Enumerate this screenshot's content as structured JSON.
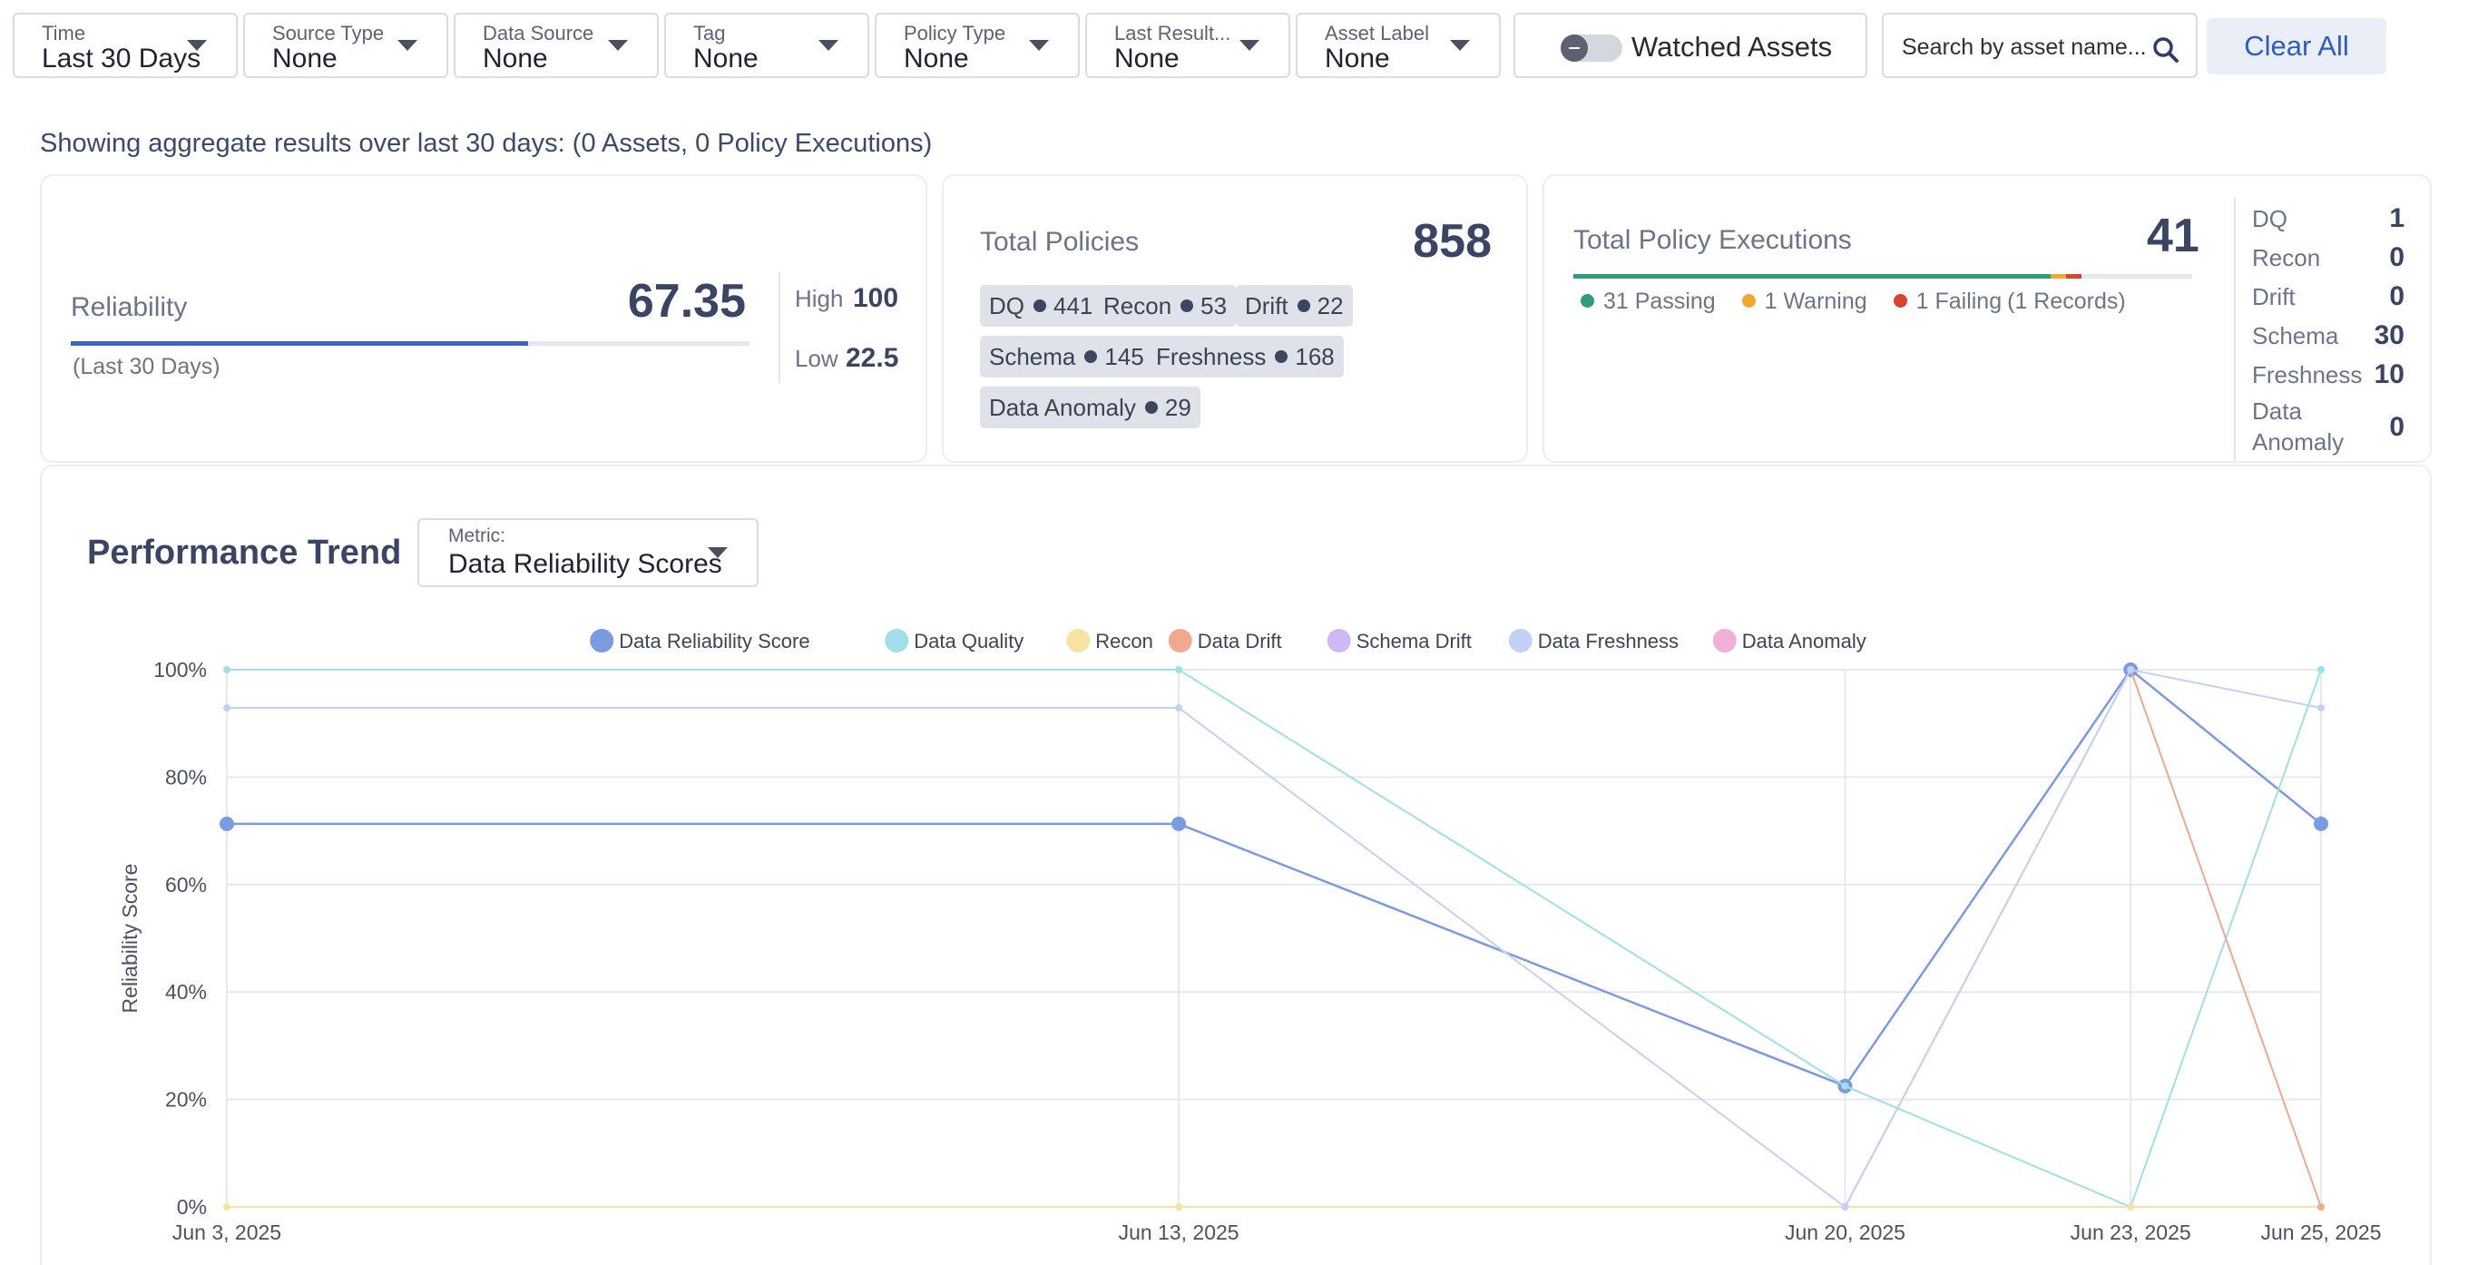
{
  "filters": [
    {
      "label": "Time",
      "value": "Last 30 Days"
    },
    {
      "label": "Source Type",
      "value": "None"
    },
    {
      "label": "Data Source",
      "value": "None"
    },
    {
      "label": "Tag",
      "value": "None"
    },
    {
      "label": "Policy Type",
      "value": "None"
    },
    {
      "label": "Last Result...",
      "value": "None"
    },
    {
      "label": "Asset Label",
      "value": "None"
    }
  ],
  "watched": {
    "label": "Watched Assets",
    "enabled": false
  },
  "search": {
    "placeholder": "Search by asset name..."
  },
  "clear_all": "Clear All",
  "summary": "Showing aggregate results over last 30 days: (0 Assets, 0 Policy Executions)",
  "reliability": {
    "title": "Reliability",
    "score": "67.35",
    "score_value": 67.35,
    "subtitle": "(Last 30 Days)",
    "high_label": "High",
    "high": "100",
    "low_label": "Low",
    "low": "22.5"
  },
  "policies": {
    "title": "Total Policies",
    "total": "858",
    "chips": [
      {
        "name": "DQ",
        "count": "441"
      },
      {
        "name": "Recon",
        "count": "53"
      },
      {
        "name": "Drift",
        "count": "22"
      },
      {
        "name": "Schema",
        "count": "145"
      },
      {
        "name": "Freshness",
        "count": "168"
      },
      {
        "name": "Data Anomaly",
        "count": "29"
      }
    ]
  },
  "executions": {
    "title": "Total Policy Executions",
    "total": "41",
    "passing": "31 Passing",
    "warning": "1 Warning",
    "failing": "1 Failing",
    "failing_records": "(1 Records)",
    "passing_count": 31,
    "warning_count": 1,
    "failing_count": 1,
    "colors": {
      "passing": "#2e9e7a",
      "warning": "#f0a830",
      "failing": "#d9432f"
    },
    "breakdown": [
      {
        "label": "DQ",
        "value": "1"
      },
      {
        "label": "Recon",
        "value": "0"
      },
      {
        "label": "Drift",
        "value": "0"
      },
      {
        "label": "Schema",
        "value": "30"
      },
      {
        "label": "Freshness",
        "value": "10"
      },
      {
        "label": "Data Anomaly",
        "value": "0"
      }
    ]
  },
  "trend": {
    "title": "Performance Trend",
    "metric_label": "Metric:",
    "metric_value": "Data Reliability Scores"
  },
  "chart_data": {
    "type": "line",
    "x": [
      "Jun 3, 2025",
      "Jun 13, 2025",
      "Jun 20, 2025",
      "Jun 23, 2025",
      "Jun 25, 2025"
    ],
    "x_days": [
      3,
      13,
      20,
      23,
      25
    ],
    "ylabel": "Reliability Score",
    "ylim": [
      0,
      100
    ],
    "yticks": [
      "0%",
      "20%",
      "40%",
      "60%",
      "80%",
      "100%"
    ],
    "grid": true,
    "legend_position": "top",
    "series": [
      {
        "name": "Data Reliability Score",
        "color": "#7b9be0",
        "values": [
          71.3,
          71.3,
          22.5,
          100,
          71.3
        ]
      },
      {
        "name": "Data Quality",
        "color": "#a0dfe8",
        "values": [
          100,
          100,
          22.5,
          0,
          100
        ]
      },
      {
        "name": "Recon",
        "color": "#f9e3a3",
        "values": [
          0,
          0,
          0,
          0,
          0
        ]
      },
      {
        "name": "Data Drift",
        "color": "#f0a88e",
        "values": [
          null,
          null,
          0,
          100,
          0
        ]
      },
      {
        "name": "Schema Drift",
        "color": "#d0b8f5",
        "values": [
          null,
          null,
          null,
          null,
          null
        ]
      },
      {
        "name": "Data Freshness",
        "color": "#c3d1f5",
        "values": [
          92.9,
          92.9,
          0,
          100,
          92.9
        ]
      },
      {
        "name": "Data Anomaly",
        "color": "#f0b0da",
        "values": [
          null,
          null,
          null,
          null,
          null
        ]
      }
    ]
  }
}
